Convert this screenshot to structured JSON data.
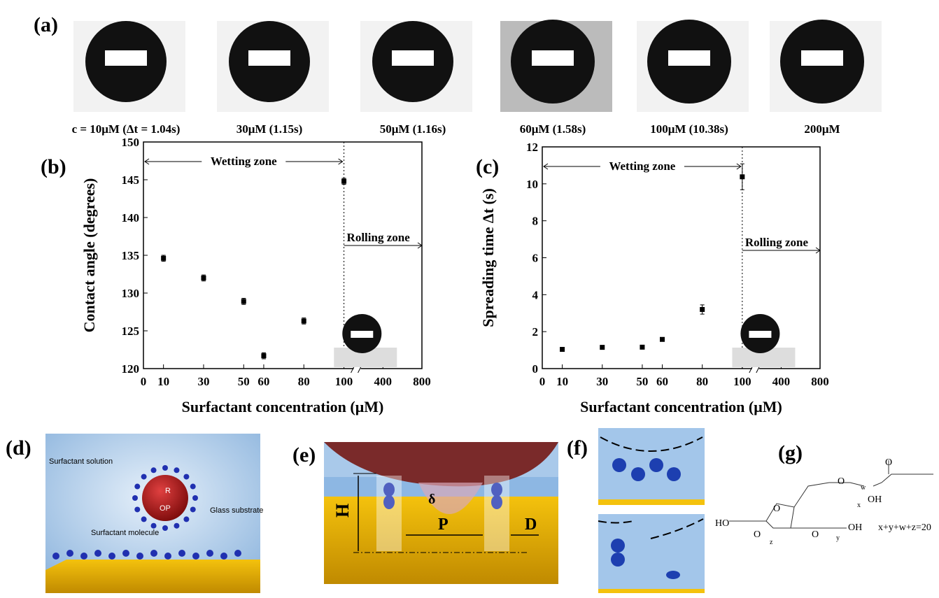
{
  "panel_a": {
    "label": "(a)",
    "captions": [
      "c = 10μM (Δt = 1.04s)",
      "30μM (1.15s)",
      "50μM (1.16s)",
      "60μM (1.58s)",
      "100μM (10.38s)",
      "200μM"
    ]
  },
  "chart_data": [
    {
      "type": "scatter",
      "label": "(b)",
      "x": [
        10,
        30,
        50,
        60,
        80,
        100
      ],
      "values": [
        134.6,
        132.0,
        128.9,
        121.7,
        126.3,
        144.8
      ],
      "errors": [
        0.4,
        0.4,
        0.4,
        0.4,
        0.4,
        0.4
      ],
      "color": "#000000",
      "xlim": [
        0,
        800
      ],
      "xbreak": 100,
      "xticks": [
        0,
        10,
        30,
        50,
        60,
        80,
        100,
        400,
        800
      ],
      "ylim": [
        120,
        150
      ],
      "yticks": [
        120,
        125,
        130,
        135,
        140,
        145,
        150
      ],
      "xlabel": "Surfactant concentration (μM)",
      "ylabel": "Contact angle (degrees)",
      "annotations": [
        "Wetting zone",
        "Rolling zone"
      ]
    },
    {
      "type": "scatter",
      "label": "(c)",
      "x": [
        10,
        30,
        50,
        60,
        80,
        100
      ],
      "values": [
        1.04,
        1.15,
        1.16,
        1.58,
        3.2,
        10.38
      ],
      "errors": [
        0.05,
        0.05,
        0.05,
        0.05,
        0.25,
        0.7
      ],
      "color": "#000000",
      "xlim": [
        0,
        800
      ],
      "xbreak": 100,
      "xticks": [
        0,
        10,
        30,
        50,
        60,
        80,
        100,
        400,
        800
      ],
      "ylim": [
        0,
        12
      ],
      "yticks": [
        0,
        2,
        4,
        6,
        8,
        10,
        12
      ],
      "xlabel": "Surfactant concentration (μM)",
      "ylabel": "Spreading time Δt (s)",
      "annotations": [
        "Wetting zone",
        "Rolling zone"
      ]
    }
  ],
  "panel_d": {
    "label": "(d)",
    "texts": [
      "Surfactant solution",
      "R",
      "OP",
      "Glass substrate",
      "Surfactant molecule"
    ]
  },
  "panel_e": {
    "label": "(e)",
    "texts": [
      "H",
      "δ",
      "P",
      "D"
    ]
  },
  "panel_f": {
    "label": "(f)"
  },
  "panel_g": {
    "label": "(g)",
    "texts": [
      "O",
      "O",
      "O",
      "OH",
      "HO",
      "O",
      "O",
      "OH",
      "x+y+w+z=20",
      "w",
      "x",
      "z",
      "y"
    ]
  }
}
